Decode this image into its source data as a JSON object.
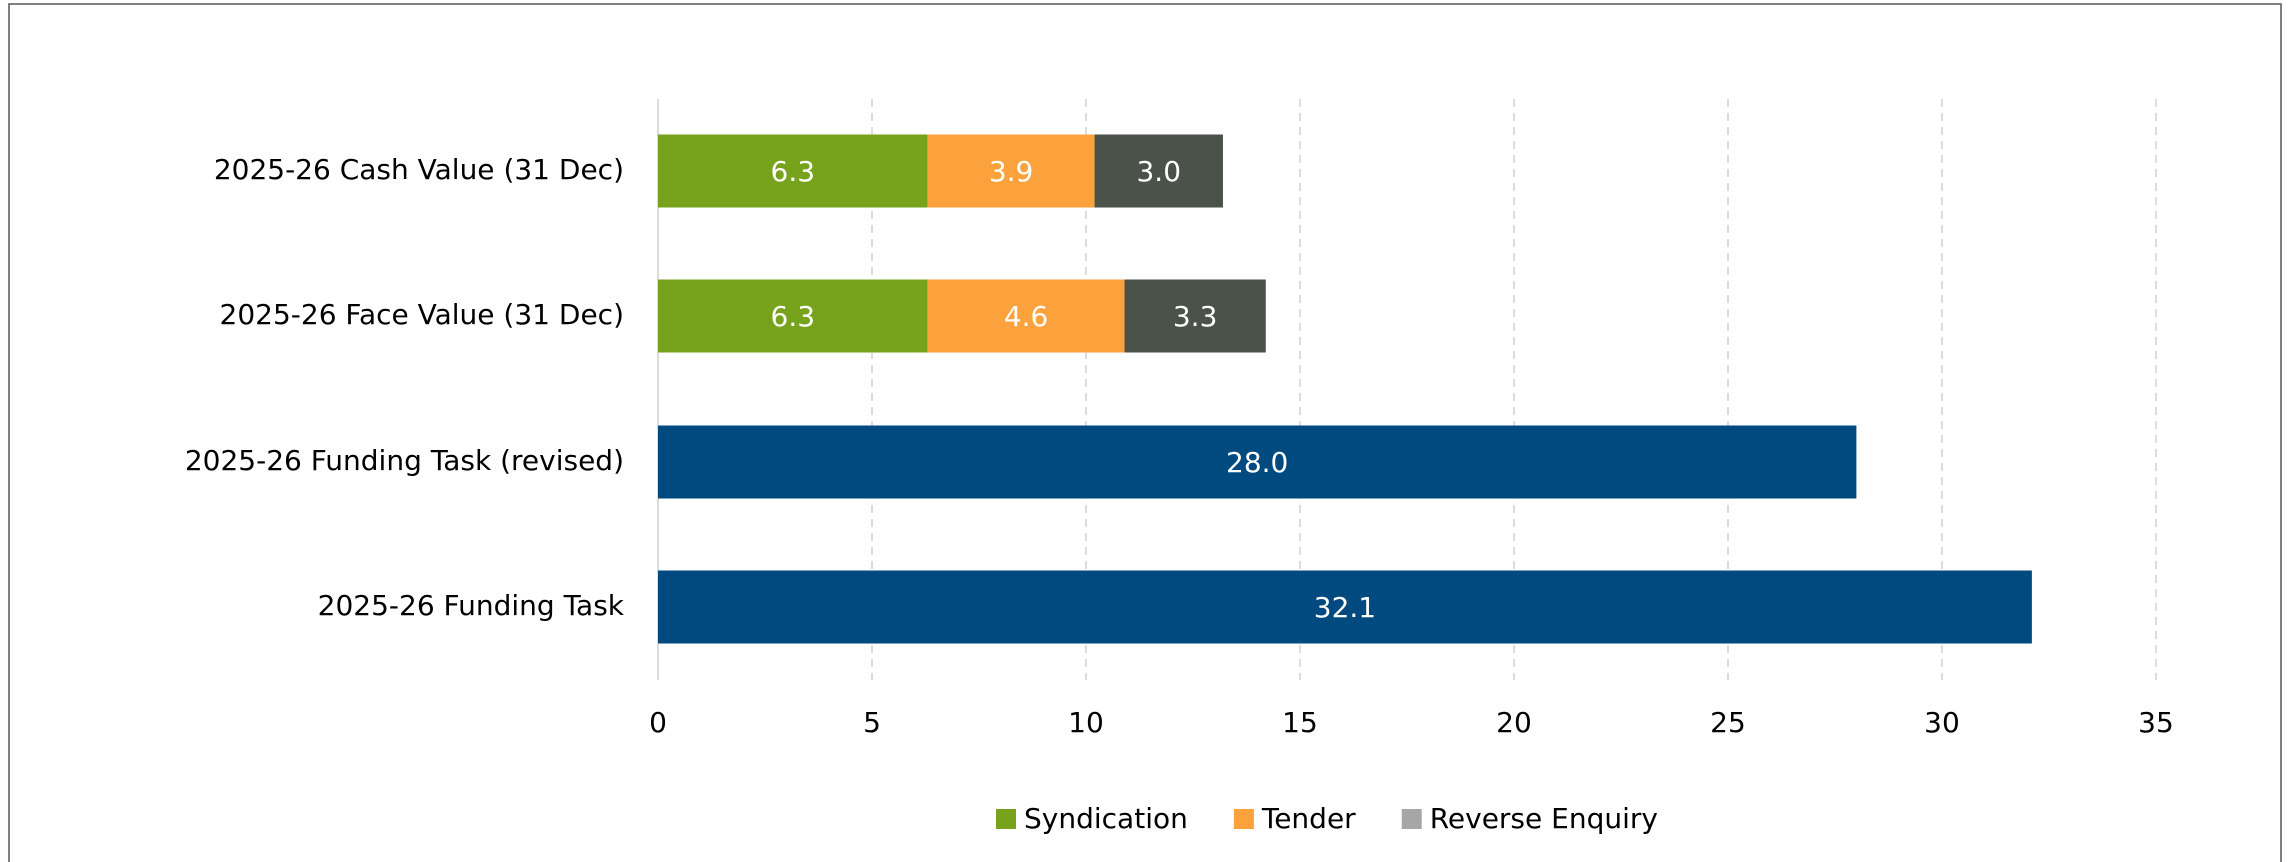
{
  "chart_data": {
    "type": "stacked_barh",
    "categories": [
      "2025-26 Cash Value (31 Dec)",
      "2025-26 Face Value (31 Dec)",
      "2025-26 Funding Task (revised)",
      "2025-26 Funding Task"
    ],
    "series": [
      {
        "name": "Syndication",
        "color": "#76a31b",
        "values": [
          6.3,
          6.3,
          null,
          null
        ],
        "value_labels": [
          "6.3",
          "6.3",
          null,
          null
        ]
      },
      {
        "name": "Tender",
        "color": "#fba23c",
        "values": [
          3.9,
          4.6,
          null,
          null
        ],
        "value_labels": [
          "3.9",
          "4.6",
          null,
          null
        ]
      },
      {
        "name": "Reverse Enquiry",
        "color": "#4a5249",
        "legend_color": "#a6a6a6",
        "values": [
          3.0,
          3.3,
          null,
          null
        ],
        "value_labels": [
          "3.0",
          "3.3",
          null,
          null
        ]
      },
      {
        "color": "#004a80",
        "values": [
          null,
          null,
          28.0,
          32.1
        ],
        "value_labels": [
          null,
          null,
          "28.0",
          "32.1"
        ]
      }
    ],
    "xlim": [
      0,
      35
    ],
    "xticks": [
      0,
      5,
      10,
      15,
      20,
      25,
      30,
      35
    ],
    "grid": true,
    "legend": "bottom"
  }
}
